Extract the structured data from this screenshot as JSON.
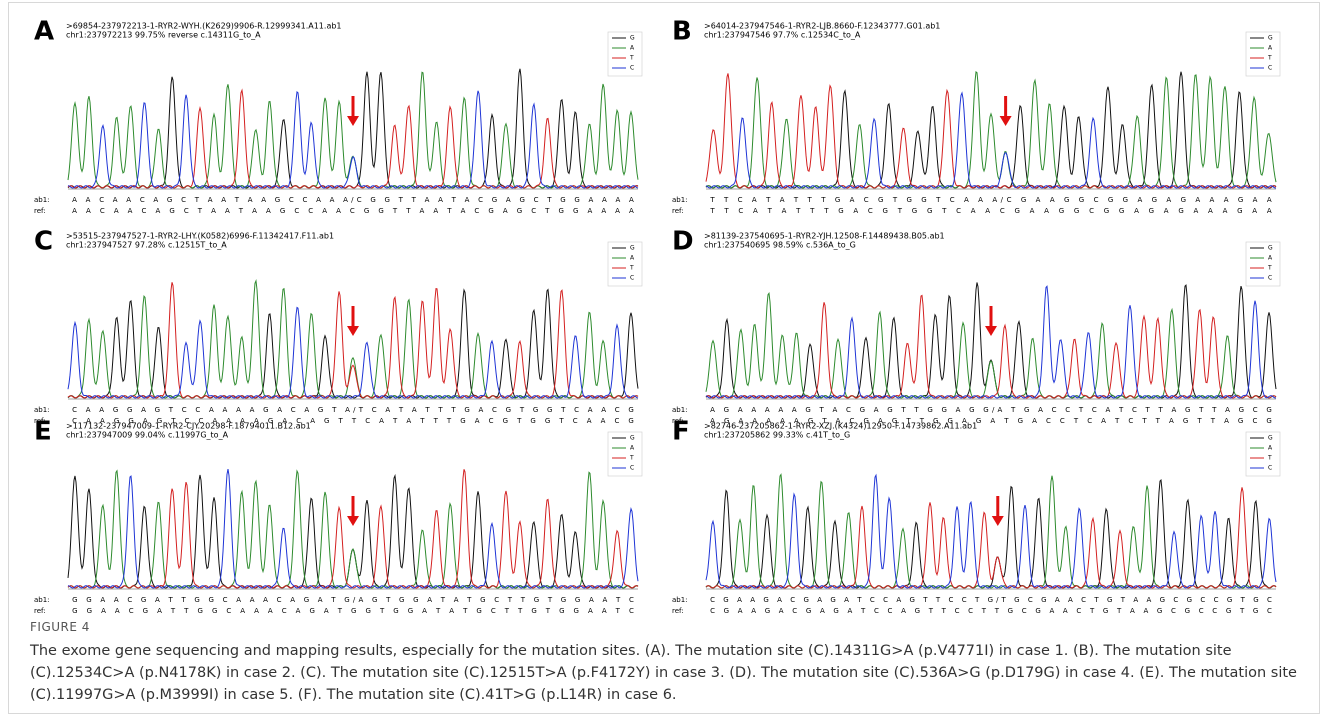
{
  "figure": {
    "base_colors": {
      "G": "#111111",
      "A": "#2e8b2e",
      "T": "#d42020",
      "C": "#1f35d6"
    },
    "panels": [
      {
        "letter": "A",
        "id_line": ">69854-237972213-1-RYR2-WYH.(K2629)9906-R.12999341.A11.ab1",
        "info_line": "chr1:237972213  99.75%  reverse  c.14311G_to_A",
        "legend": [
          "G",
          "A",
          "T",
          "C"
        ],
        "ab1_label": "ab1:",
        "ab1": "A A C A A C A G C T A A T A A G C C A A A/C G G T T A A T A C G A G C T G G A A A A",
        "ref_label": "ref:",
        "ref": "A A C A A C A G C T A A T A A G C C A A C G G T T A A T A C G A G C T G G A A A A"
      },
      {
        "letter": "B",
        "id_line": ">64014-237947546-1-RYR2-LJB.8660-F.12343777.G01.ab1",
        "info_line": "chr1:237947546  97.7%   c.12534C_to_A",
        "legend": [
          "G",
          "A",
          "T",
          "C"
        ],
        "ab1_label": "ab1:",
        "ab1": "T T C A T A T T T G A C G T G G T C A A A/C G A A G G C G G A G A G A A A G A A",
        "ref_label": "ref:",
        "ref": "T T C A T A T T T G A C G T G G T C A A C G A A G G C G G A G A G A A A G A A"
      },
      {
        "letter": "C",
        "id_line": ">53515-237947527-1-RYR2-LHY.(K0582)6996-F.11342417.F11.ab1",
        "info_line": "chr1:237947527  97.28%   c.12515T_to_A",
        "legend": [
          "G",
          "A",
          "T",
          "C"
        ],
        "ab1_label": "ab1:",
        "ab1": "C A A G G A G T C C A A A A G A C A G T A/T C A T A T T T G A C G T G G T C A A C G",
        "ref_label": "ref:",
        "ref": "C A A G G A G T C C A A A A G A C A G T T C A T A T T T G A C G T G G T C A A C G"
      },
      {
        "letter": "D",
        "id_line": ">81139-237540695-1-RYR2-YJH.12508-F.14489438.B05.ab1",
        "info_line": "chr1:237540695  98.59%   c.536A_to_G",
        "legend": [
          "G",
          "A",
          "T",
          "C"
        ],
        "ab1_label": "ab1:",
        "ab1": "A G A A A A A G T A C G A G T T G G A G G/A T G A C C T C A T C T T A G T T A G C G",
        "ref_label": "ref:",
        "ref": "A G A A A A A G T A C G A G T T G G A G A T G A C C T C A T C T T A G T T A G C G"
      },
      {
        "letter": "E",
        "id_line": ">117132-237947009-1-RYR2-CJY.20298-F.18794011.B12.ab1",
        "info_line": "chr1:237947009  99.04%   c.11997G_to_A",
        "legend": [
          "G",
          "A",
          "T",
          "C"
        ],
        "ab1_label": "ab1:",
        "ab1": "G G A A C G A T T G G C A A A C A G A T G/A G T G G A T A T G C T T G T G G A A T C",
        "ref_label": "ref:",
        "ref": "G G A A C G A T T G G C A A A C A G A T G G T G G A T A T G C T T G T G G A A T C"
      },
      {
        "letter": "F",
        "id_line": ">82746-237205862-1-RYR2-XZJ.(K4324)12950-F.14739862.A11.ab1",
        "info_line": "chr1:237205862  99.33%   c.41T_to_G",
        "legend": [
          "G",
          "A",
          "T",
          "C"
        ],
        "ab1_label": "ab1:",
        "ab1": "C G A A G A C G A G A T C C A G T T C C T G/T G C G A A C T G T A A G C G C C G T G C",
        "ref_label": "ref:",
        "ref": "C G A A G A C G A G A T C C A G T T C C T T G C G A A C T G T A A G C G C C G T G C"
      }
    ],
    "label": "FIGURE 4",
    "caption": "The exome gene sequencing and mapping results, especially for the mutation sites. (A). The mutation site (C).14311G>A (p.V4771I) in case 1. (B). The mutation site (C).12534C>A (p.N4178K) in case 2. (C). The mutation site (C).12515T>A (p.F4172Y) in case 3. (D). The mutation site (C).536A>G (p.D179G) in case 4. (E). The mutation site (C).11997G>A (p.M3999I) in case 5. (F). The mutation site (C).41T>G (p.L14R) in case 6."
  }
}
